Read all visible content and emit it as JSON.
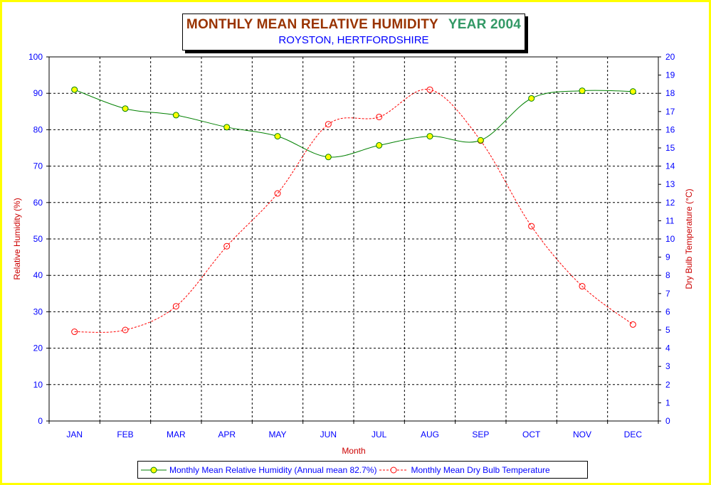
{
  "chart_data": {
    "type": "line",
    "title": "MONTHLY MEAN RELATIVE HUMIDITY",
    "title_year": "YEAR 2004",
    "subtitle": "ROYSTON, HERTFORDSHIRE",
    "xlabel": "Month",
    "ylabel": "Relative Humidity (%)",
    "y2label": "Dry Bulb Temperature (°C)",
    "categories": [
      "JAN",
      "FEB",
      "MAR",
      "APR",
      "MAY",
      "JUN",
      "JUL",
      "AUG",
      "SEP",
      "OCT",
      "NOV",
      "DEC"
    ],
    "ylim": [
      0,
      100
    ],
    "y2lim": [
      0,
      20
    ],
    "yticks": [
      0,
      10,
      20,
      30,
      40,
      50,
      60,
      70,
      80,
      90,
      100
    ],
    "y2ticks": [
      0,
      1,
      2,
      3,
      4,
      5,
      6,
      7,
      8,
      9,
      10,
      11,
      12,
      13,
      14,
      15,
      16,
      17,
      18,
      19,
      20
    ],
    "grid": true,
    "legend_position": "bottom",
    "series": [
      {
        "name": "Monthly Mean Relative Humidity (Annual mean 82.7%)",
        "axis": "left",
        "color": "#008000",
        "marker_fill": "#ffff00",
        "style": "solid",
        "values": [
          91.0,
          85.8,
          84.0,
          80.7,
          78.2,
          72.5,
          75.7,
          78.2,
          77.1,
          88.6,
          90.7,
          90.5
        ]
      },
      {
        "name": "Monthly Mean Dry Bulb Temperature",
        "axis": "right",
        "color": "#ff0000",
        "marker_fill": "none",
        "style": "dashed",
        "values": [
          4.9,
          5.0,
          6.3,
          9.6,
          12.5,
          16.3,
          16.7,
          18.2,
          15.4,
          10.7,
          7.4,
          5.3
        ]
      }
    ]
  }
}
